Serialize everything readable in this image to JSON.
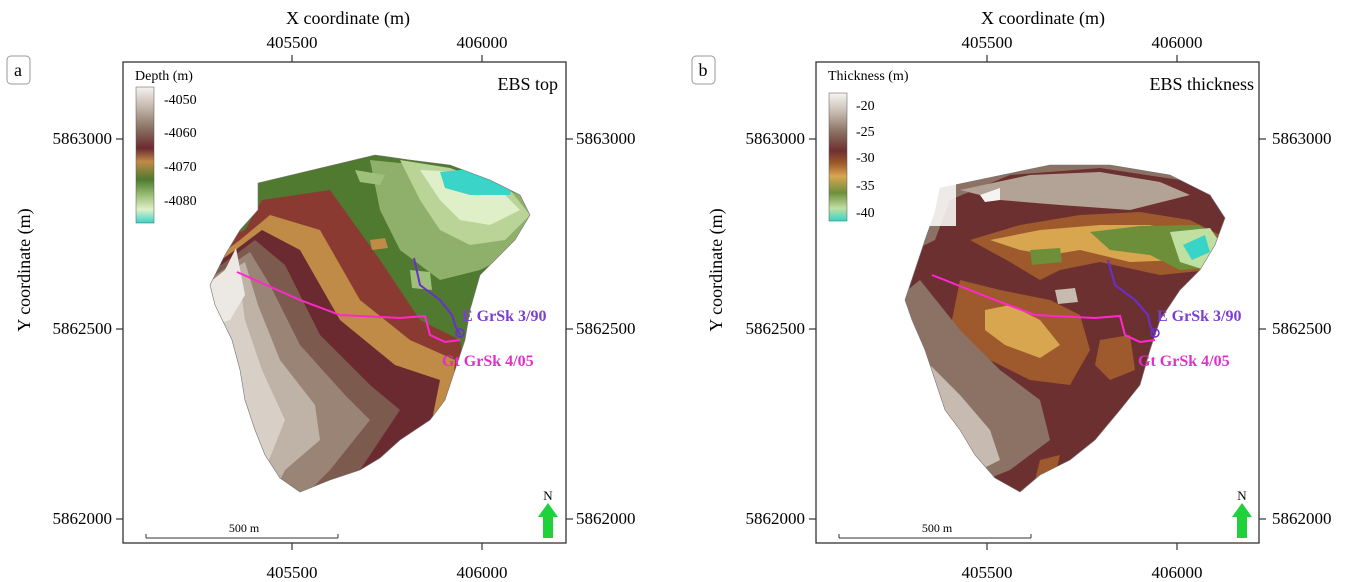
{
  "panels": [
    {
      "id": "a",
      "letter": "a",
      "corner_label": "EBS top",
      "axis_top_title": "X coordinate (m)",
      "axis_left_title": "Y coordinate (m)",
      "x_ticks": [
        "405500",
        "406000"
      ],
      "x_ticks_bottom": [
        "405500",
        "406000"
      ],
      "y_ticks": [
        "5863000",
        "5862500",
        "5862000"
      ],
      "y_ticks_right": [
        "5863000",
        "5862500",
        "5862000"
      ],
      "legend": {
        "title": "Depth (m)",
        "labels": [
          "-4050",
          "-4060",
          "-4070",
          "-4080"
        ],
        "colors": [
          "#f2f0ee",
          "#c3b6ab",
          "#8b7363",
          "#6b2a30",
          "#c08a47",
          "#4f7a2f",
          "#9ec07a",
          "#dff0c8",
          "#3ad4c8"
        ]
      },
      "wells": [
        {
          "name": "E GrSk 3/90",
          "color": "#7b3fd0"
        },
        {
          "name": "Gt GrSk 4/05",
          "color": "#e030c8"
        }
      ],
      "scalebar_label": "500 m",
      "north_label": "N"
    },
    {
      "id": "b",
      "letter": "b",
      "corner_label": "EBS thickness",
      "axis_top_title": "X coordinate (m)",
      "axis_left_title": "Y coordinate (m)",
      "x_ticks": [
        "405500",
        "406000"
      ],
      "x_ticks_bottom": [
        "405500",
        "406000"
      ],
      "y_ticks": [
        "5863000",
        "5862500",
        "5862000"
      ],
      "y_ticks_right": [
        "5863000",
        "5862500",
        "5862000"
      ],
      "legend": {
        "title": "Thickness (m)",
        "labels": [
          "-20",
          "-25",
          "-30",
          "-35",
          "-40"
        ],
        "colors": [
          "#f4f2f0",
          "#c7bbb1",
          "#8b7264",
          "#6d3030",
          "#9e5a2c",
          "#d9a650",
          "#6e8f3a",
          "#bfe0a0",
          "#39d4c8"
        ]
      },
      "wells": [
        {
          "name": "E GrSk 3/90",
          "color": "#7b3fd0"
        },
        {
          "name": "Gt GrSk 4/05",
          "color": "#e030c8"
        }
      ],
      "scalebar_label": "500 m",
      "north_label": "N"
    }
  ]
}
